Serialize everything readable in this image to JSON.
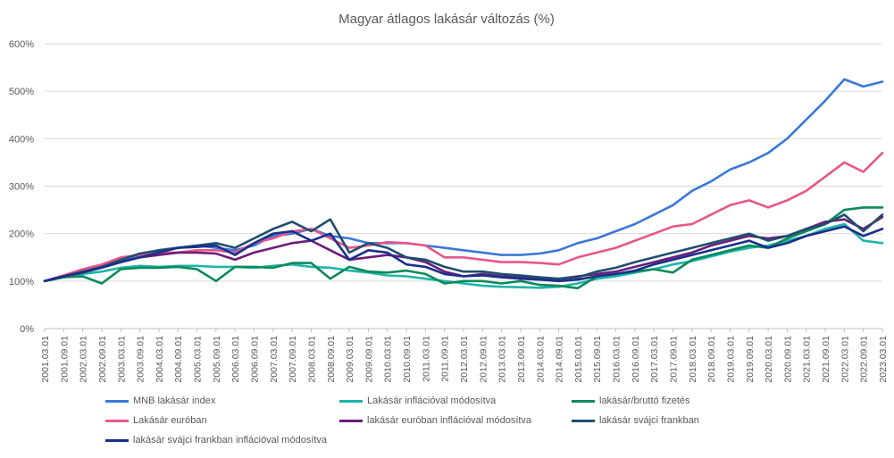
{
  "chart_data": {
    "type": "line",
    "title": "Magyar átlagos lakásár változás (%)",
    "xlabel": "",
    "ylabel": "",
    "ylim": [
      0,
      600
    ],
    "yticks": [
      0,
      100,
      200,
      300,
      400,
      500,
      600
    ],
    "ytick_labels": [
      "0%",
      "100%",
      "200%",
      "300%",
      "400%",
      "500%",
      "600%"
    ],
    "grid": true,
    "legend_position": "bottom",
    "x": [
      "2001.03.01",
      "2001.09.01",
      "2002.03.01",
      "2002.09.01",
      "2003.03.01",
      "2003.09.01",
      "2004.03.01",
      "2004.09.01",
      "2005.03.01",
      "2005.09.01",
      "2006.03.01",
      "2006.09.01",
      "2007.03.01",
      "2007.09.01",
      "2008.03.01",
      "2008.09.01",
      "2009.03.01",
      "2009.09.01",
      "2010.03.01",
      "2010.09.01",
      "2011.03.01",
      "2011.09.01",
      "2012.03.01",
      "2012.09.01",
      "2013.03.01",
      "2013.09.01",
      "2014.03.01",
      "2014.09.01",
      "2015.03.01",
      "2015.09.01",
      "2016.03.01",
      "2016.09.01",
      "2017.03.01",
      "2017.09.01",
      "2018.03.01",
      "2018.09.01",
      "2019.03.01",
      "2019.09.01",
      "2020.03.01",
      "2020.09.01",
      "2021.03.01",
      "2021.09.01",
      "2022.03.01",
      "2022.09.01",
      "2023.03.01"
    ],
    "series": [
      {
        "name": "MNB lakásár index",
        "color": "#3b78d8",
        "values": [
          100,
          110,
          120,
          130,
          140,
          155,
          165,
          170,
          175,
          170,
          165,
          175,
          195,
          200,
          210,
          195,
          190,
          180,
          180,
          180,
          175,
          170,
          165,
          160,
          155,
          155,
          158,
          165,
          180,
          190,
          205,
          220,
          240,
          260,
          290,
          310,
          335,
          350,
          370,
          400,
          440,
          480,
          525,
          510,
          520
        ]
      },
      {
        "name": "Lakásár inflációval módosítva",
        "color": "#1fb5a8",
        "values": [
          100,
          108,
          115,
          120,
          128,
          132,
          130,
          132,
          132,
          130,
          130,
          128,
          132,
          135,
          130,
          128,
          122,
          118,
          112,
          110,
          105,
          100,
          95,
          90,
          88,
          87,
          86,
          88,
          95,
          105,
          110,
          118,
          125,
          135,
          142,
          152,
          162,
          170,
          175,
          185,
          195,
          210,
          220,
          185,
          180
        ]
      },
      {
        "name": "lakásár/bruttó fizetés",
        "color": "#0a8a5a",
        "values": [
          100,
          108,
          110,
          95,
          125,
          128,
          128,
          130,
          125,
          100,
          130,
          130,
          128,
          138,
          138,
          105,
          130,
          120,
          118,
          122,
          115,
          95,
          100,
          100,
          95,
          100,
          92,
          90,
          85,
          110,
          115,
          120,
          125,
          118,
          145,
          155,
          165,
          175,
          170,
          190,
          205,
          220,
          250,
          255,
          255
        ]
      },
      {
        "name": "Lakásár euróban",
        "color": "#e8568a",
        "values": [
          100,
          112,
          125,
          135,
          150,
          155,
          160,
          160,
          165,
          165,
          160,
          180,
          190,
          205,
          210,
          190,
          170,
          175,
          182,
          180,
          175,
          150,
          150,
          145,
          140,
          140,
          138,
          135,
          150,
          160,
          170,
          185,
          200,
          215,
          220,
          240,
          260,
          270,
          255,
          270,
          290,
          320,
          350,
          330,
          370
        ]
      },
      {
        "name": "lakásár euróban inflációval módosítva",
        "color": "#6a1e7a",
        "values": [
          100,
          110,
          120,
          130,
          140,
          150,
          155,
          160,
          160,
          158,
          145,
          160,
          170,
          180,
          185,
          165,
          145,
          150,
          155,
          150,
          140,
          120,
          110,
          115,
          110,
          108,
          105,
          105,
          110,
          115,
          120,
          130,
          140,
          150,
          160,
          175,
          185,
          195,
          190,
          195,
          210,
          225,
          230,
          210,
          235
        ]
      },
      {
        "name": "lakásár svájci frankban",
        "color": "#1f4e6e",
        "values": [
          100,
          110,
          120,
          130,
          145,
          158,
          165,
          170,
          175,
          180,
          170,
          190,
          210,
          225,
          205,
          230,
          160,
          180,
          170,
          150,
          145,
          130,
          120,
          120,
          115,
          112,
          108,
          105,
          108,
          120,
          128,
          140,
          150,
          160,
          170,
          180,
          190,
          200,
          185,
          195,
          210,
          220,
          240,
          205,
          240
        ]
      },
      {
        "name": "lakásár svájci frankban inflációval módosítva",
        "color": "#1a2f8a",
        "values": [
          100,
          110,
          118,
          128,
          140,
          150,
          160,
          170,
          172,
          175,
          155,
          180,
          200,
          205,
          185,
          200,
          145,
          165,
          160,
          135,
          130,
          115,
          110,
          112,
          108,
          105,
          103,
          100,
          103,
          110,
          115,
          122,
          135,
          145,
          155,
          165,
          175,
          185,
          170,
          180,
          195,
          205,
          215,
          195,
          210
        ]
      }
    ]
  }
}
